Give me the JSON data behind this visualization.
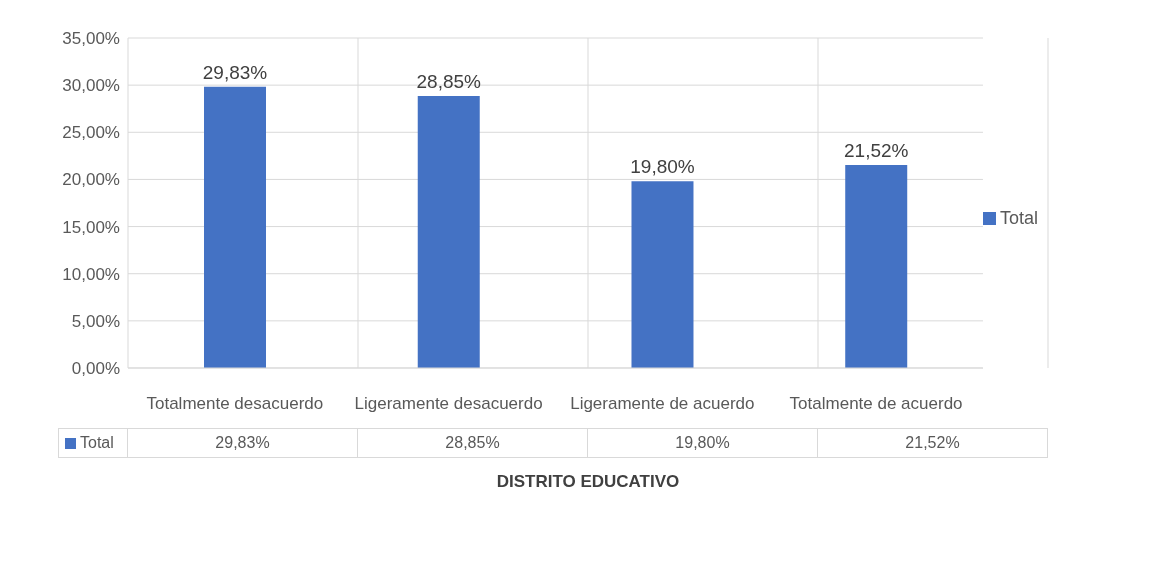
{
  "chart_data": {
    "type": "bar",
    "xlabel": "DISTRITO EDUCATIVO",
    "categories": [
      "Totalmente desacuerdo",
      "Ligeramente desacuerdo",
      "Ligeramente de acuerdo",
      "Totalmente de acuerdo"
    ],
    "series": [
      {
        "name": "Total",
        "color": "#4472c4",
        "values": [
          29.83,
          28.85,
          19.8,
          21.52
        ],
        "value_labels": [
          "29,83%",
          "28,85%",
          "19,80%",
          "21,52%"
        ]
      }
    ],
    "ylim": [
      0,
      35
    ],
    "yticks": [
      {
        "value": 0,
        "label": "0,00%"
      },
      {
        "value": 5,
        "label": "5,00%"
      },
      {
        "value": 10,
        "label": "10,00%"
      },
      {
        "value": 15,
        "label": "15,00%"
      },
      {
        "value": 20,
        "label": "20,00%"
      },
      {
        "value": 25,
        "label": "25,00%"
      },
      {
        "value": 30,
        "label": "30,00%"
      },
      {
        "value": 35,
        "label": "35,00%"
      }
    ],
    "grid": true,
    "legend": "right"
  }
}
